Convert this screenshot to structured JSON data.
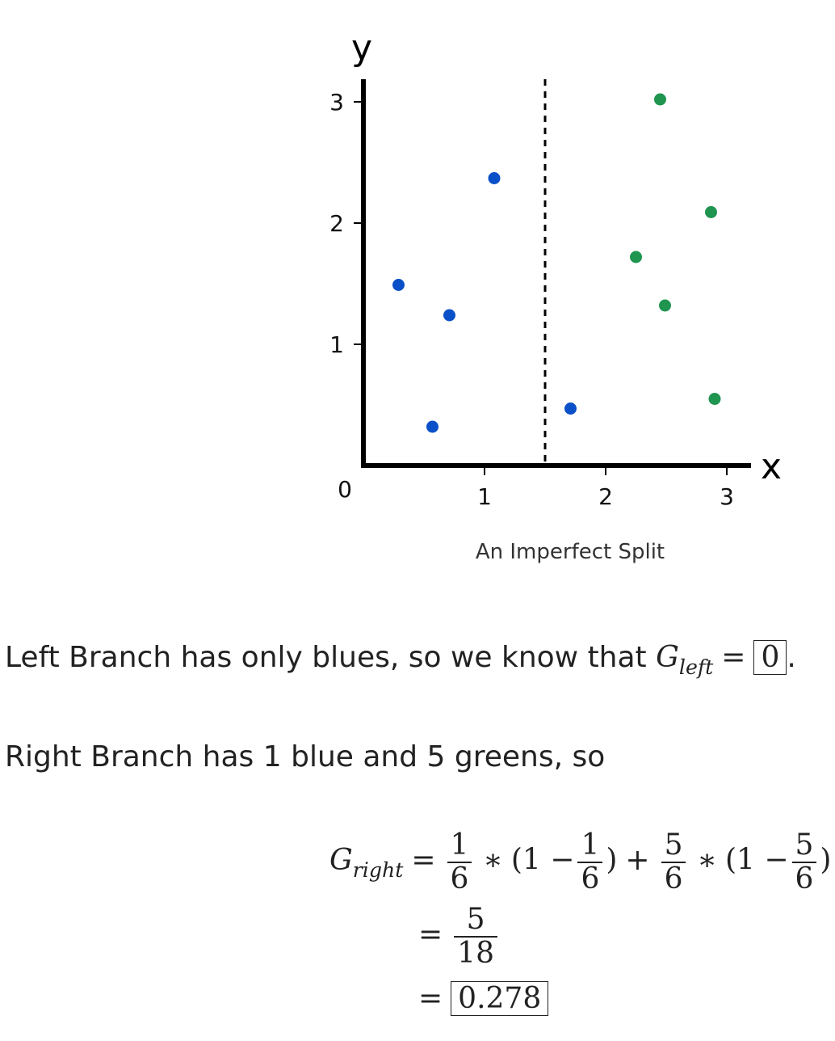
{
  "chart_data": {
    "type": "scatter",
    "xlabel": "x",
    "ylabel": "y",
    "origin_label": "0",
    "x_ticks": [
      "1",
      "2",
      "3"
    ],
    "y_ticks": [
      "1",
      "2",
      "3"
    ],
    "xlim": [
      0,
      3.2
    ],
    "ylim": [
      0,
      3.2
    ],
    "split_x": 1.5,
    "series": [
      {
        "color": "#0a50c8",
        "points": [
          [
            0.29,
            1.49
          ],
          [
            0.71,
            1.24
          ],
          [
            1.08,
            2.37
          ],
          [
            0.57,
            0.32
          ],
          [
            1.71,
            0.47
          ]
        ]
      },
      {
        "color": "#1f9550",
        "points": [
          [
            2.45,
            3.02
          ],
          [
            2.87,
            2.09
          ],
          [
            2.25,
            1.72
          ],
          [
            2.49,
            1.32
          ],
          [
            2.9,
            0.55
          ]
        ]
      }
    ],
    "caption": "An Imperfect Split"
  },
  "text": {
    "left_branch_prefix": "Left Branch has only blues, so we know that ",
    "left_branch_suffix": ".",
    "g_symbol": "G",
    "left_sub": "left",
    "right_sub": "right",
    "left_value": "0",
    "right_branch_line": "Right Branch has 1 blue and 5 greens, so",
    "eq_sign": "=",
    "frac_1_6_num": "1",
    "frac_1_6_den": "6",
    "frac_5_6_num": "5",
    "frac_5_6_den": "6",
    "times": "∗",
    "open_paren_one_minus": "(1 −",
    "close_paren": ")",
    "plus": "+",
    "frac_5_18_num": "5",
    "frac_5_18_den": "18",
    "right_value": "0.278"
  }
}
